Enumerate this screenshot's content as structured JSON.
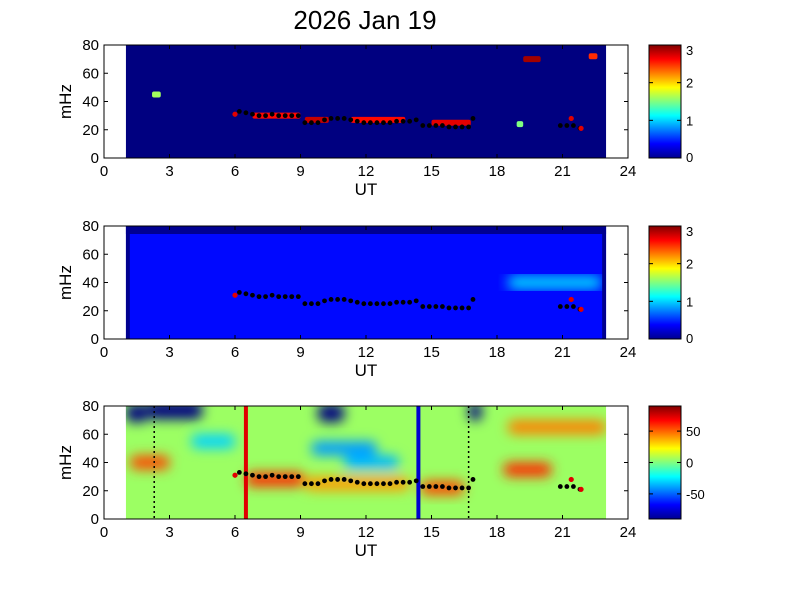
{
  "title": "2026 Jan 19",
  "chart_data": [
    {
      "type": "heatmap",
      "panel": "top",
      "xlabel": "UT",
      "ylabel": "mHz",
      "xlim": [
        0,
        24
      ],
      "ylim": [
        0,
        80
      ],
      "xticks": [
        0,
        3,
        6,
        9,
        12,
        15,
        18,
        21,
        24
      ],
      "yticks": [
        0,
        20,
        40,
        60,
        80
      ],
      "data_range_ut": [
        1,
        23
      ],
      "background_value": 0,
      "clim": [
        0,
        3
      ],
      "colorbar_ticks": [
        0,
        1,
        2,
        3
      ],
      "colormap": "jet",
      "features": [
        {
          "ut": [
            2.2,
            2.6
          ],
          "mhz": 45,
          "value": 1.6
        },
        {
          "ut": [
            6.8,
            9.0
          ],
          "mhz": 30,
          "value": 2.6
        },
        {
          "ut": [
            9.2,
            10.3
          ],
          "mhz": 27,
          "value": 2.8
        },
        {
          "ut": [
            11.3,
            13.8
          ],
          "mhz": 27,
          "value": 2.6
        },
        {
          "ut": [
            15.0,
            16.8
          ],
          "mhz": 25,
          "value": 2.7
        },
        {
          "ut": [
            19.2,
            20.0
          ],
          "mhz": 70,
          "value": 2.9
        },
        {
          "ut": [
            22.2,
            22.6
          ],
          "mhz": 72,
          "value": 2.5
        },
        {
          "ut": [
            18.9,
            19.2
          ],
          "mhz": 24,
          "value": 1.5
        }
      ]
    },
    {
      "type": "heatmap",
      "panel": "middle",
      "xlabel": "UT",
      "ylabel": "mHz",
      "xlim": [
        0,
        24
      ],
      "ylim": [
        0,
        80
      ],
      "xticks": [
        0,
        3,
        6,
        9,
        12,
        15,
        18,
        21,
        24
      ],
      "yticks": [
        0,
        20,
        40,
        60,
        80
      ],
      "data_range_ut": [
        1,
        23
      ],
      "background_value": 0.4,
      "clim": [
        0,
        3
      ],
      "colorbar_ticks": [
        0,
        1,
        2,
        3
      ],
      "colormap": "jet",
      "features": [
        {
          "ut": [
            18.5,
            22.8
          ],
          "mhz": 40,
          "value": 1.0
        }
      ]
    },
    {
      "type": "heatmap",
      "panel": "bottom",
      "xlabel": "UT",
      "ylabel": "mHz",
      "xlim": [
        0,
        24
      ],
      "ylim": [
        0,
        80
      ],
      "xticks": [
        0,
        3,
        6,
        9,
        12,
        15,
        18,
        21,
        24
      ],
      "yticks": [
        0,
        20,
        40,
        60,
        80
      ],
      "data_range_ut": [
        1,
        23
      ],
      "background_value": 5,
      "clim": [
        -90,
        90
      ],
      "colorbar_ticks": [
        50,
        0,
        -50
      ],
      "colormap": "jet",
      "vertical_lines": [
        {
          "ut": 6.5,
          "color": "#e00000",
          "style": "solid"
        },
        {
          "ut": 14.4,
          "color": "#0000d0",
          "style": "solid"
        },
        {
          "ut": 2.3,
          "color": "#000000",
          "style": "dotted"
        },
        {
          "ut": 16.7,
          "color": "#000000",
          "style": "dotted"
        }
      ],
      "features": [
        {
          "ut": [
            1.2,
            3.0
          ],
          "mhz": 40,
          "value": 55
        },
        {
          "ut": [
            6.5,
            9.2
          ],
          "mhz": 28,
          "value": 60
        },
        {
          "ut": [
            9.2,
            14.0
          ],
          "mhz": 25,
          "value": 40
        },
        {
          "ut": [
            14.5,
            16.5
          ],
          "mhz": 22,
          "value": 55
        },
        {
          "ut": [
            18.3,
            20.5
          ],
          "mhz": 35,
          "value": 60
        },
        {
          "ut": [
            18.5,
            23.0
          ],
          "mhz": 65,
          "value": 45
        },
        {
          "ut": [
            9.5,
            12.5
          ],
          "mhz": 50,
          "value": -40
        },
        {
          "ut": [
            11.0,
            13.5
          ],
          "mhz": 40,
          "value": -35
        },
        {
          "ut": [
            4.0,
            6.0
          ],
          "mhz": 55,
          "value": -30
        },
        {
          "ut": [
            1.0,
            2.0
          ],
          "mhz": 75,
          "value": -90
        },
        {
          "ut": [
            2.0,
            4.5
          ],
          "mhz": 77,
          "value": -90
        },
        {
          "ut": [
            9.8,
            11.0
          ],
          "mhz": 75,
          "value": -90
        },
        {
          "ut": [
            16.7,
            17.3
          ],
          "mhz": 76,
          "value": -90
        }
      ]
    }
  ],
  "ridge": {
    "color": "#000000",
    "points": [
      [
        6.2,
        33
      ],
      [
        6.5,
        32
      ],
      [
        6.8,
        31
      ],
      [
        7.1,
        30
      ],
      [
        7.4,
        30
      ],
      [
        7.7,
        31
      ],
      [
        8.0,
        30
      ],
      [
        8.3,
        30
      ],
      [
        8.6,
        30
      ],
      [
        8.9,
        30
      ],
      [
        9.2,
        25
      ],
      [
        9.5,
        25
      ],
      [
        9.8,
        25
      ],
      [
        10.1,
        27
      ],
      [
        10.4,
        28
      ],
      [
        10.7,
        28
      ],
      [
        11.0,
        28
      ],
      [
        11.3,
        27
      ],
      [
        11.6,
        26
      ],
      [
        11.9,
        25
      ],
      [
        12.2,
        25
      ],
      [
        12.5,
        25
      ],
      [
        12.8,
        25
      ],
      [
        13.1,
        25
      ],
      [
        13.4,
        26
      ],
      [
        13.7,
        26
      ],
      [
        14.0,
        26
      ],
      [
        14.3,
        27
      ],
      [
        14.6,
        23
      ],
      [
        14.9,
        23
      ],
      [
        15.2,
        23
      ],
      [
        15.5,
        23
      ],
      [
        15.8,
        22
      ],
      [
        16.1,
        22
      ],
      [
        16.4,
        22
      ],
      [
        16.7,
        22
      ],
      [
        16.9,
        28
      ],
      [
        20.9,
        23
      ],
      [
        21.2,
        23
      ],
      [
        21.5,
        23
      ],
      [
        21.8,
        21
      ]
    ]
  },
  "red_points": {
    "color": "#e00000",
    "points": [
      [
        6.0,
        31
      ],
      [
        21.4,
        28
      ],
      [
        21.85,
        21
      ]
    ]
  }
}
